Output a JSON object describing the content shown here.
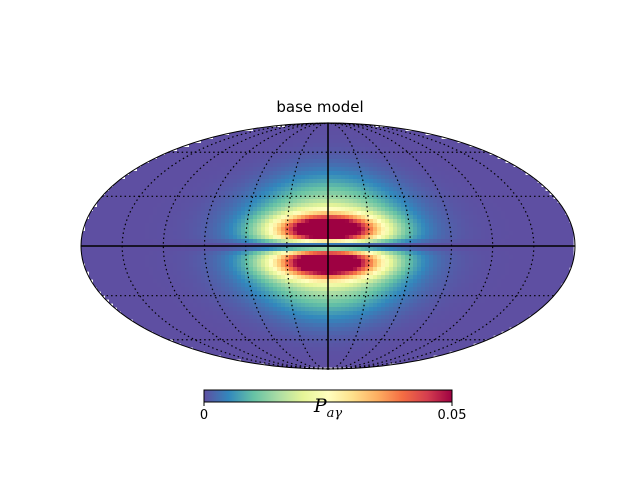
{
  "chart_data": {
    "type": "heatmap",
    "projection": "mollweide",
    "title": "base model",
    "colormap": "Spectral_r",
    "colormap_stops": [
      "#5e4fa2",
      "#3288bd",
      "#66c2a5",
      "#abdda4",
      "#e6f598",
      "#ffffbf",
      "#fee08b",
      "#fdae61",
      "#f46d43",
      "#d53e4f",
      "#9e0142"
    ],
    "graticule": true,
    "colorbar": {
      "orientation": "horizontal",
      "label": "P",
      "label_subscript": "aγ",
      "vmin": 0,
      "vmax": 0.05,
      "ticks": [
        "0",
        "0.05"
      ]
    },
    "features": {
      "background_value": 0.0,
      "peak_value": 0.05,
      "peak_latitudes_deg": [
        10,
        -10
      ],
      "equatorial_band_value": 0.0,
      "peak_longitude_deg": 0
    }
  }
}
